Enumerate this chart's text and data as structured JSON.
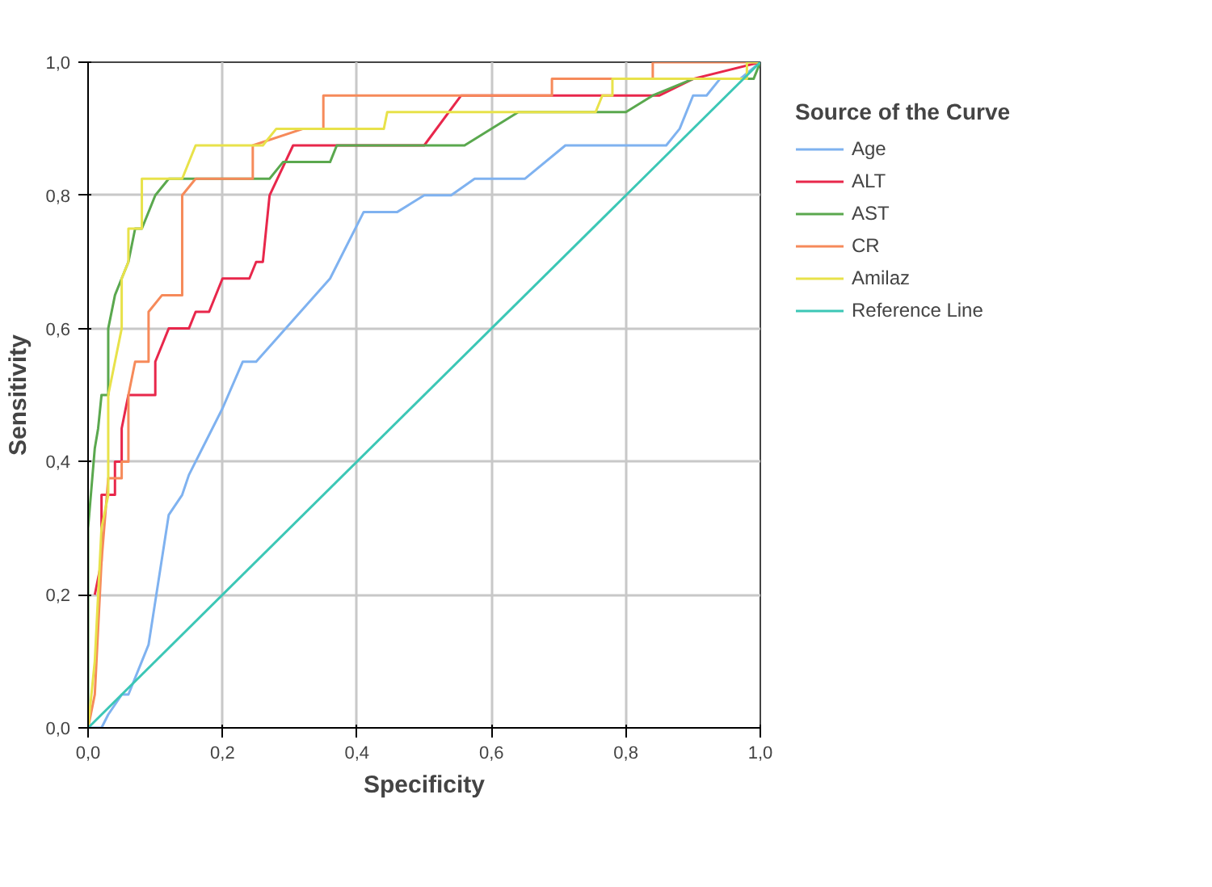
{
  "chart_data": {
    "type": "line",
    "xlabel": "Specificity",
    "ylabel": "Sensitivity",
    "legend_title": "Source of the Curve",
    "legend": "right",
    "grid": true,
    "line_style": "solid",
    "xlim": [
      0,
      1
    ],
    "ylim": [
      0,
      1
    ],
    "xticks": [
      {
        "value": 0,
        "label": "0,0"
      },
      {
        "value": 0.2,
        "label": "0,2"
      },
      {
        "value": 0.4,
        "label": "0,4"
      },
      {
        "value": 0.6,
        "label": "0,6"
      },
      {
        "value": 0.8,
        "label": "0,8"
      },
      {
        "value": 1,
        "label": "1,0"
      }
    ],
    "yticks": [
      {
        "value": 0,
        "label": "0,0"
      },
      {
        "value": 0.2,
        "label": "0,2"
      },
      {
        "value": 0.4,
        "label": "0,4"
      },
      {
        "value": 0.6,
        "label": "0,6"
      },
      {
        "value": 0.8,
        "label": "0,8"
      },
      {
        "value": 1,
        "label": "1,0"
      }
    ],
    "series": [
      {
        "name": "Age",
        "color": "#7fb2f0",
        "x": [
          0,
          0.02,
          0.03,
          0.05,
          0.06,
          0.08,
          0.09,
          0.12,
          0.14,
          0.15,
          0.2,
          0.23,
          0.25,
          0.36,
          0.41,
          0.46,
          0.5,
          0.54,
          0.575,
          0.65,
          0.71,
          0.86,
          0.88,
          0.9,
          0.92,
          0.94,
          0.97,
          1
        ],
        "values": [
          0,
          0,
          0.02,
          0.05,
          0.05,
          0.1,
          0.125,
          0.32,
          0.35,
          0.38,
          0.48,
          0.55,
          0.55,
          0.675,
          0.775,
          0.775,
          0.8,
          0.8,
          0.825,
          0.825,
          0.875,
          0.875,
          0.9,
          0.95,
          0.95,
          0.975,
          0.975,
          1
        ]
      },
      {
        "name": "ALT",
        "color": "#e8274b",
        "x": [
          0.01,
          0.02,
          0.02,
          0.04,
          0.04,
          0.05,
          0.05,
          0.06,
          0.1,
          0.1,
          0.11,
          0.12,
          0.15,
          0.16,
          0.18,
          0.2,
          0.24,
          0.25,
          0.26,
          0.27,
          0.305,
          0.5,
          0.555,
          0.85,
          0.9,
          1
        ],
        "values": [
          0.2,
          0.25,
          0.35,
          0.35,
          0.4,
          0.4,
          0.45,
          0.5,
          0.5,
          0.55,
          0.575,
          0.6,
          0.6,
          0.625,
          0.625,
          0.675,
          0.675,
          0.7,
          0.7,
          0.8,
          0.875,
          0.875,
          0.95,
          0.95,
          0.975,
          1
        ]
      },
      {
        "name": "AST",
        "color": "#5aa84e",
        "x": [
          0,
          0,
          0.01,
          0.015,
          0.02,
          0.03,
          0.03,
          0.04,
          0.05,
          0.06,
          0.07,
          0.08,
          0.1,
          0.12,
          0.27,
          0.29,
          0.36,
          0.37,
          0.56,
          0.64,
          0.8,
          0.84,
          0.9,
          0.99,
          1
        ],
        "values": [
          0,
          0.3,
          0.42,
          0.45,
          0.5,
          0.5,
          0.6,
          0.65,
          0.675,
          0.7,
          0.75,
          0.75,
          0.8,
          0.825,
          0.825,
          0.85,
          0.85,
          0.875,
          0.875,
          0.925,
          0.925,
          0.95,
          0.975,
          0.975,
          1
        ]
      },
      {
        "name": "CR",
        "color": "#f68a5a",
        "x": [
          0,
          0.01,
          0.02,
          0.03,
          0.05,
          0.05,
          0.06,
          0.06,
          0.07,
          0.09,
          0.09,
          0.11,
          0.14,
          0.14,
          0.16,
          0.245,
          0.245,
          0.32,
          0.35,
          0.35,
          0.69,
          0.69,
          0.84,
          0.84,
          1
        ],
        "values": [
          0,
          0.05,
          0.25,
          0.375,
          0.375,
          0.4,
          0.4,
          0.5,
          0.55,
          0.55,
          0.625,
          0.65,
          0.65,
          0.8,
          0.825,
          0.825,
          0.875,
          0.9,
          0.9,
          0.95,
          0.95,
          0.975,
          0.975,
          1,
          1
        ]
      },
      {
        "name": "Amilaz",
        "color": "#e8e24a",
        "x": [
          0,
          0.01,
          0.02,
          0.03,
          0.03,
          0.04,
          0.05,
          0.05,
          0.06,
          0.06,
          0.08,
          0.08,
          0.14,
          0.16,
          0.26,
          0.28,
          0.44,
          0.445,
          0.755,
          0.765,
          0.78,
          0.78,
          0.98,
          0.98,
          1
        ],
        "values": [
          0,
          0.1,
          0.3,
          0.35,
          0.5,
          0.55,
          0.6,
          0.675,
          0.7,
          0.75,
          0.75,
          0.825,
          0.825,
          0.875,
          0.875,
          0.9,
          0.9,
          0.925,
          0.925,
          0.95,
          0.95,
          0.975,
          0.975,
          1,
          1
        ]
      },
      {
        "name": "Reference Line",
        "color": "#3cc7b6",
        "x": [
          0,
          1
        ],
        "values": [
          0,
          1
        ]
      }
    ]
  }
}
